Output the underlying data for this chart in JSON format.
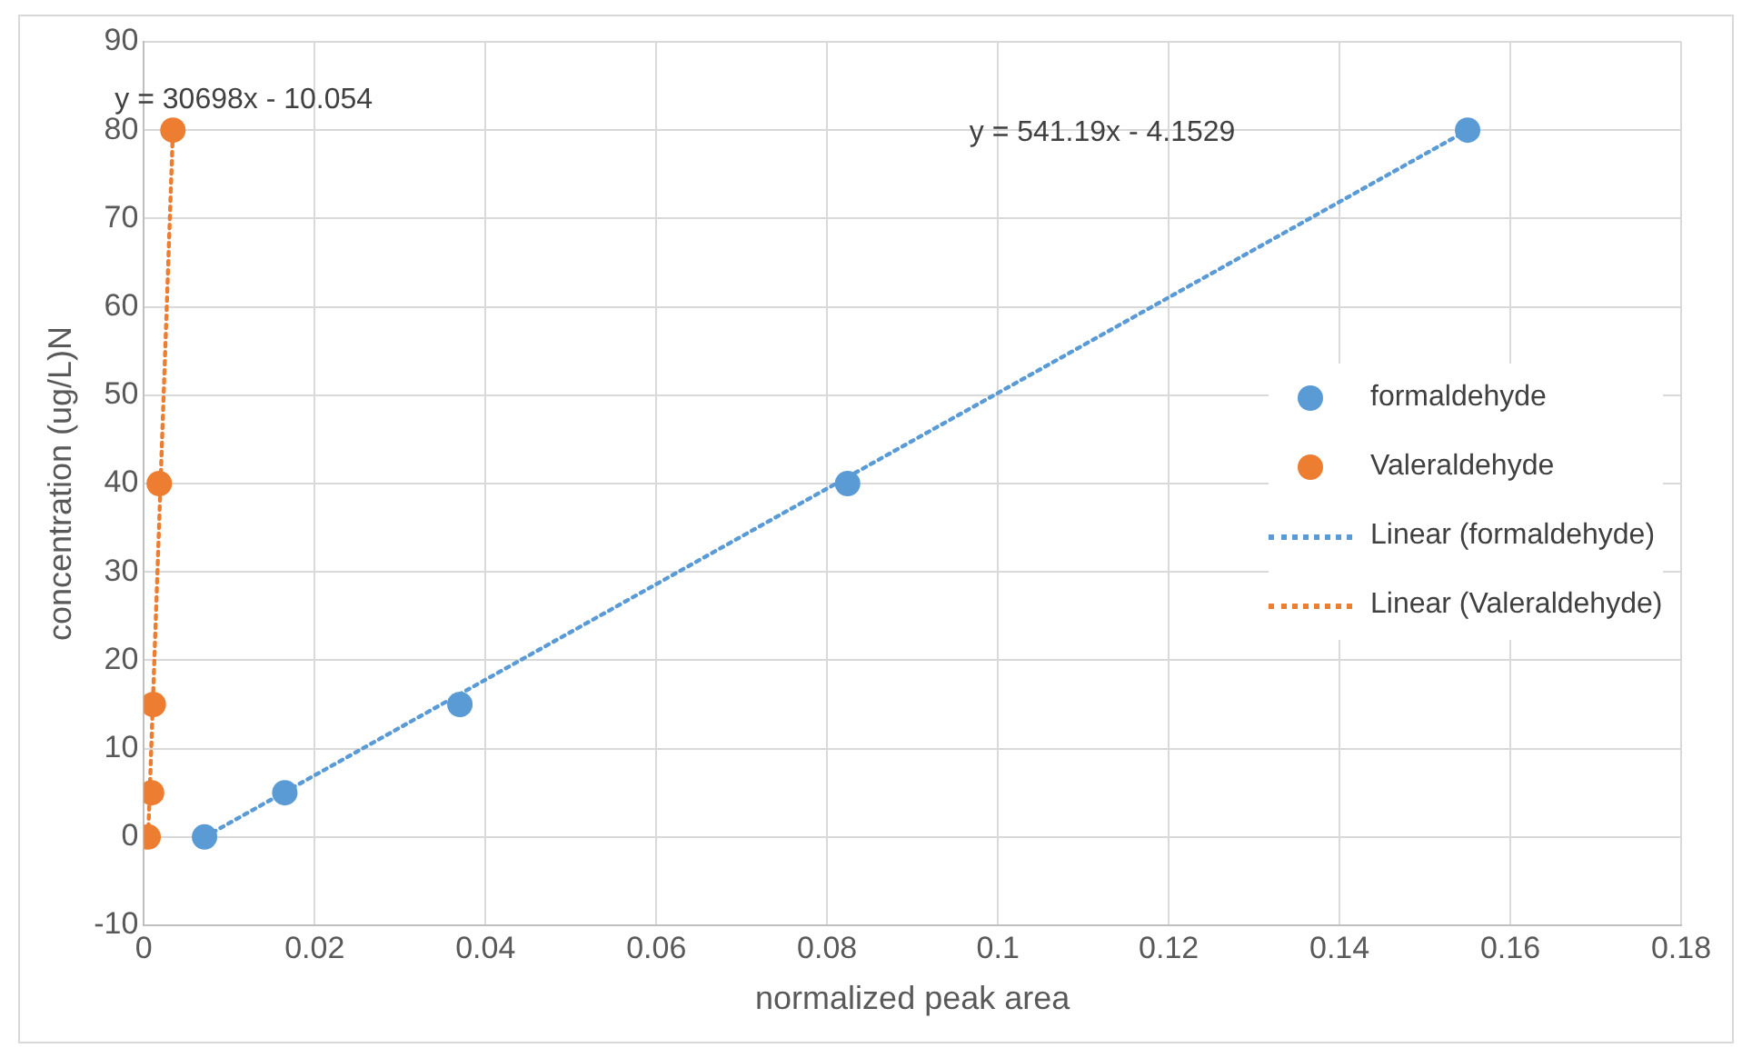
{
  "chart_data": {
    "type": "scatter",
    "xlabel": "normalized peak area",
    "ylabel": "concentration (ug/L)N",
    "series": [
      {
        "name": "formaldehyde",
        "color": "#5b9bd5",
        "marker": "circle",
        "x": [
          0.0071,
          0.0165,
          0.037,
          0.0824,
          0.155
        ],
        "values": [
          0,
          5,
          15,
          40,
          80
        ]
      },
      {
        "name": "Valeraldehyde",
        "color": "#ed7d31",
        "marker": "circle",
        "x": [
          0.0005,
          0.0009,
          0.0011,
          0.0018,
          0.0034
        ],
        "values": [
          0,
          5,
          15,
          40,
          80
        ]
      },
      {
        "name": "Linear (formaldehyde)",
        "type": "line",
        "color": "#5b9bd5",
        "line_style": "dotted",
        "marker": "none",
        "x": [
          0.0071,
          0.155
        ],
        "values": [
          0,
          80
        ]
      },
      {
        "name": "Linear (Valeraldehyde)",
        "type": "line",
        "color": "#ed7d31",
        "line_style": "dotted",
        "marker": "none",
        "x": [
          0.0005,
          0.0034
        ],
        "values": [
          0,
          80
        ]
      }
    ],
    "annotations": [
      "y = 30698x - 10.054",
      "y = 541.19x - 4.1529"
    ],
    "xlim": [
      0,
      0.18
    ],
    "xticks": [
      0,
      0.02,
      0.04,
      0.06,
      0.08,
      0.1,
      0.12,
      0.14,
      0.16,
      0.18
    ],
    "ylim": [
      -10,
      90
    ],
    "yticks": [
      -10,
      0,
      10,
      20,
      30,
      40,
      50,
      60,
      70,
      80,
      90
    ],
    "grid": true,
    "legend": "right"
  }
}
